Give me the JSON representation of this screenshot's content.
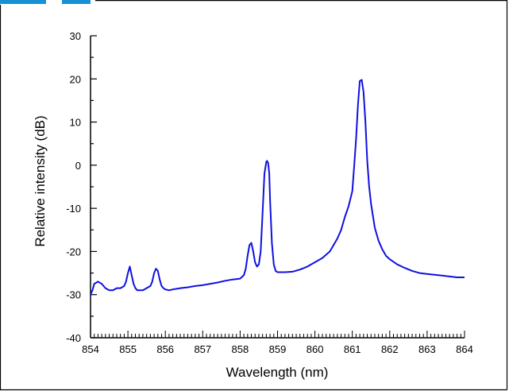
{
  "chart_data": {
    "type": "line",
    "title": "",
    "xlabel": "Wavelength (nm)",
    "ylabel": "Relative intensity (dB)",
    "xlim": [
      854,
      864
    ],
    "ylim": [
      -40,
      30
    ],
    "x_ticks": [
      854,
      855,
      856,
      857,
      858,
      859,
      860,
      861,
      862,
      863,
      864
    ],
    "y_ticks": [
      -40,
      -30,
      -20,
      -10,
      0,
      10,
      20,
      30
    ],
    "x_minor_step": 0.1,
    "y_minor_step": 5,
    "grid": false,
    "line_color": "#1010e0",
    "frame_color": "#000000",
    "header_accent_color": "#1a8fd6",
    "series": [
      {
        "x": [
          854.0,
          854.05,
          854.1,
          854.2,
          854.3,
          854.4,
          854.5,
          854.6,
          854.7,
          854.8,
          854.9,
          854.95,
          855.0,
          855.05,
          855.1,
          855.15,
          855.2,
          855.25,
          855.3,
          855.4,
          855.5,
          855.6,
          855.65,
          855.7,
          855.75,
          855.8,
          855.85,
          855.9,
          855.95,
          856.0,
          856.1,
          856.2,
          856.4,
          856.6,
          856.8,
          857.0,
          857.2,
          857.4,
          857.6,
          857.8,
          858.0,
          858.1,
          858.15,
          858.2,
          858.25,
          858.3,
          858.35,
          858.4,
          858.45,
          858.5,
          858.55,
          858.6,
          858.65,
          858.7,
          858.72,
          858.75,
          858.78,
          858.8,
          858.85,
          858.9,
          858.95,
          859.0,
          859.2,
          859.4,
          859.6,
          859.8,
          860.0,
          860.2,
          860.4,
          860.6,
          860.7,
          860.8,
          860.9,
          861.0,
          861.05,
          861.1,
          861.15,
          861.2,
          861.25,
          861.3,
          861.35,
          861.4,
          861.45,
          861.5,
          861.6,
          861.7,
          861.8,
          861.9,
          862.0,
          862.2,
          862.4,
          862.6,
          862.8,
          863.0,
          863.2,
          863.4,
          863.6,
          863.8,
          864.0
        ],
        "y": [
          -30,
          -29,
          -27.5,
          -27,
          -27.5,
          -28.5,
          -29,
          -29,
          -28.5,
          -28.5,
          -28,
          -27,
          -25,
          -23.5,
          -25.5,
          -27.5,
          -28.5,
          -29,
          -29,
          -29,
          -28.5,
          -28,
          -27,
          -25,
          -24,
          -24.5,
          -26.5,
          -28,
          -28.5,
          -28.8,
          -29,
          -28.8,
          -28.5,
          -28.3,
          -28,
          -27.8,
          -27.5,
          -27.2,
          -26.8,
          -26.5,
          -26.3,
          -25.5,
          -24,
          -21,
          -18.5,
          -18,
          -20,
          -22.5,
          -23.5,
          -23,
          -20,
          -11,
          -2,
          0.8,
          1,
          0.5,
          -2,
          -8,
          -18,
          -23,
          -24.5,
          -24.8,
          -24.8,
          -24.7,
          -24.2,
          -23.5,
          -22.5,
          -21.5,
          -20,
          -17,
          -15,
          -12,
          -9.5,
          -6,
          0,
          6,
          14,
          19.5,
          19.8,
          17,
          10,
          1,
          -5,
          -9,
          -14.5,
          -17.5,
          -19.5,
          -21,
          -21.8,
          -23,
          -23.8,
          -24.5,
          -25,
          -25.2,
          -25.4,
          -25.6,
          -25.8,
          -26,
          -26
        ]
      }
    ]
  }
}
